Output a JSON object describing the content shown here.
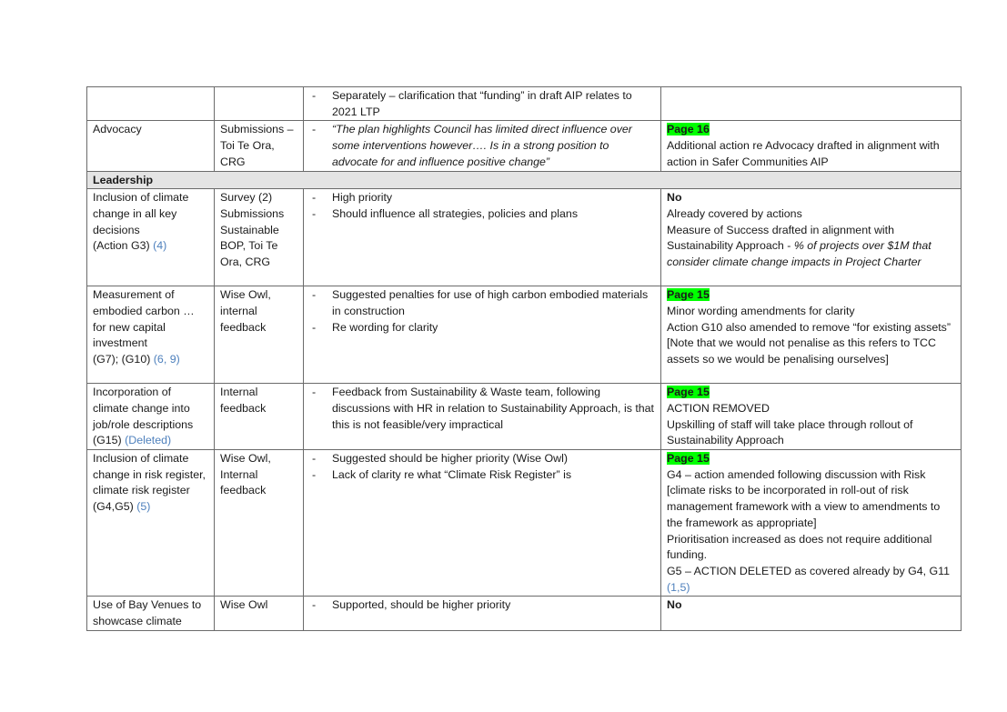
{
  "rows": [
    {
      "c1": "",
      "c2": "",
      "c3": [
        "Separately – clarification that “funding” in draft AIP relates to 2021 LTP"
      ],
      "c4": []
    },
    {
      "c1": "Advocacy",
      "c2": "Submissions – Toi Te Ora, CRG",
      "c3": [
        "“The plan highlights Council has limited direct influence over some interventions however…. Is in a strong position to advocate for and influence positive change”"
      ],
      "c4_page": "Page 16",
      "c4": [
        "Additional action re Advocacy drafted in alignment with action in Safer Communities AIP"
      ]
    },
    {
      "section": "Leadership"
    },
    {
      "c1": "Inclusion of climate change in all key decisions",
      "c1_action": "(Action G3)",
      "c1_ref": "(4)",
      "c2": "Survey (2) Submissions Sustainable BOP, Toi Te Ora, CRG",
      "c3": [
        "High priority",
        "Should influence all strategies, policies and plans"
      ],
      "c4_bold": "No",
      "c4": [
        "Already covered by actions"
      ],
      "c4_measure": "Measure of Success drafted in alignment with Sustainability Approach - ",
      "c4_measure_italic": "% of projects over $1M that consider climate change impacts in Project Charter"
    },
    {
      "c1": "Measurement of embodied carbon … for new capital investment",
      "c1_action": "(G7); (G10)",
      "c1_ref": "(6, 9)",
      "c2": "Wise Owl, internal feedback",
      "c3": [
        "Suggested penalties for use of high carbon embodied materials in construction",
        "Re wording for clarity"
      ],
      "c4_page": "Page 15",
      "c4": [
        "Minor wording amendments for clarity",
        "Action G10 also amended to remove “for existing assets”",
        "[Note that we would not penalise as this refers to TCC assets so we would be penalising ourselves]"
      ]
    },
    {
      "c1": "Incorporation of climate change into job/role descriptions",
      "c1_action": "(G15)",
      "c1_ref": "(Deleted)",
      "c2": "Internal feedback",
      "c3": [
        "Feedback from Sustainability & Waste team, following discussions with HR in relation to Sustainability Approach, is that this is not feasible/very impractical"
      ],
      "c4_page": "Page 15",
      "c4": [
        "ACTION REMOVED",
        "Upskilling of staff will take place through rollout of Sustainability Approach"
      ]
    },
    {
      "c1": "Inclusion of climate change in risk register, climate risk register",
      "c1_action": "(G4,G5)",
      "c1_ref": "(5)",
      "c2": "Wise Owl, Internal feedback",
      "c3": [
        "Suggested should be higher priority (Wise Owl)",
        "Lack of clarity re what “Climate Risk Register” is"
      ],
      "c4_page": "Page 15",
      "c4": [
        "G4 – action amended following discussion with Risk [climate risks to be incorporated in roll-out of risk management framework with a view to amendments to the framework as appropriate]",
        "Prioritisation increased as does not require additional funding.",
        "G5 – ACTION DELETED as covered already by G4, G11"
      ],
      "c4_ref": "(1,5)"
    },
    {
      "c1": "Use of Bay Venues to showcase climate",
      "c2": "Wise Owl",
      "c3": [
        "Supported, should be higher priority"
      ],
      "c4_bold": "No",
      "c4": []
    }
  ]
}
